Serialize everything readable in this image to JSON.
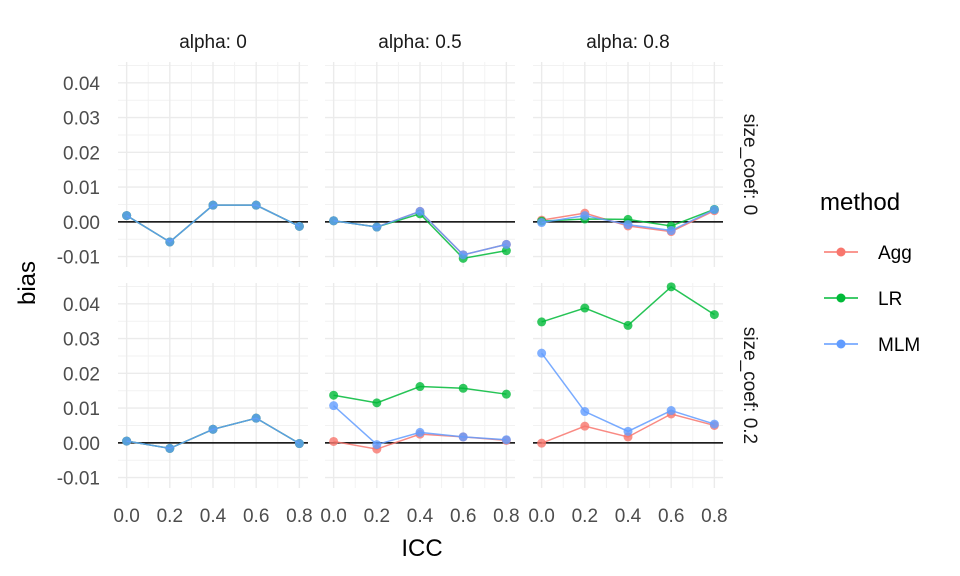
{
  "chart_data": {
    "type": "line",
    "xlabel": "ICC",
    "ylabel": "bias",
    "x": [
      0.0,
      0.2,
      0.4,
      0.6,
      0.8
    ],
    "x_tick_labels": [
      "0.0",
      "0.2",
      "0.4",
      "0.6",
      "0.8"
    ],
    "ylim": [
      -0.013,
      0.046
    ],
    "y_ticks": [
      -0.01,
      0.0,
      0.01,
      0.02,
      0.03,
      0.04
    ],
    "y_tick_labels": [
      "-0.01",
      "0.00",
      "0.01",
      "0.02",
      "0.03",
      "0.04"
    ],
    "xlim": [
      -0.04,
      0.84
    ],
    "reference_line": 0,
    "facet_cols": [
      "alpha: 0",
      "alpha: 0.5",
      "alpha: 0.8"
    ],
    "facet_rows": [
      "size_coef: 0",
      "size_coef: 0.2"
    ],
    "legend": {
      "title": "method",
      "placement": "right"
    },
    "series_colors": {
      "Agg": "#F8766D",
      "LR": "#00BA38",
      "MLM": "#619CFF"
    },
    "panels": [
      {
        "row": 0,
        "col": 0,
        "series": [
          {
            "name": "Agg",
            "values": [
              0.0018,
              -0.0058,
              0.0048,
              0.0048,
              -0.0013
            ]
          },
          {
            "name": "LR",
            "values": [
              0.0018,
              -0.0058,
              0.0048,
              0.0048,
              -0.0013
            ]
          },
          {
            "name": "MLM",
            "values": [
              0.0018,
              -0.0058,
              0.0048,
              0.0048,
              -0.0013
            ]
          }
        ]
      },
      {
        "row": 0,
        "col": 1,
        "series": [
          {
            "name": "Agg",
            "values": [
              0.0003,
              -0.0015,
              0.003,
              -0.0095,
              -0.0065
            ]
          },
          {
            "name": "LR",
            "values": [
              0.0003,
              -0.0015,
              0.0023,
              -0.0105,
              -0.0083
            ]
          },
          {
            "name": "MLM",
            "values": [
              0.0003,
              -0.0015,
              0.003,
              -0.0095,
              -0.0065
            ]
          }
        ]
      },
      {
        "row": 0,
        "col": 2,
        "series": [
          {
            "name": "Agg",
            "values": [
              0.0005,
              0.0025,
              -0.0012,
              -0.0028,
              0.0032
            ]
          },
          {
            "name": "LR",
            "values": [
              0.0002,
              0.0008,
              0.0007,
              -0.0012,
              0.0036
            ]
          },
          {
            "name": "MLM",
            "values": [
              -0.0002,
              0.0018,
              -0.0008,
              -0.0025,
              0.0035
            ]
          }
        ]
      },
      {
        "row": 1,
        "col": 0,
        "series": [
          {
            "name": "Agg",
            "values": [
              0.0005,
              -0.0016,
              0.0039,
              0.0071,
              -0.0002
            ]
          },
          {
            "name": "LR",
            "values": [
              0.0005,
              -0.0016,
              0.0039,
              0.0071,
              -0.0002
            ]
          },
          {
            "name": "MLM",
            "values": [
              0.0005,
              -0.0016,
              0.0039,
              0.0071,
              -0.0002
            ]
          }
        ]
      },
      {
        "row": 1,
        "col": 1,
        "series": [
          {
            "name": "Agg",
            "values": [
              0.0004,
              -0.0018,
              0.0025,
              0.0017,
              0.0007
            ]
          },
          {
            "name": "LR",
            "values": [
              0.0137,
              0.0115,
              0.0162,
              0.0157,
              0.014
            ]
          },
          {
            "name": "MLM",
            "values": [
              0.0107,
              -0.0005,
              0.003,
              0.0017,
              0.0009
            ]
          }
        ]
      },
      {
        "row": 1,
        "col": 2,
        "series": [
          {
            "name": "Agg",
            "values": [
              -0.0001,
              0.0048,
              0.0017,
              0.0083,
              0.005
            ]
          },
          {
            "name": "LR",
            "values": [
              0.0348,
              0.0388,
              0.0338,
              0.0449,
              0.0369
            ]
          },
          {
            "name": "MLM",
            "values": [
              0.0258,
              0.009,
              0.0033,
              0.0093,
              0.0054
            ]
          }
        ]
      }
    ]
  }
}
